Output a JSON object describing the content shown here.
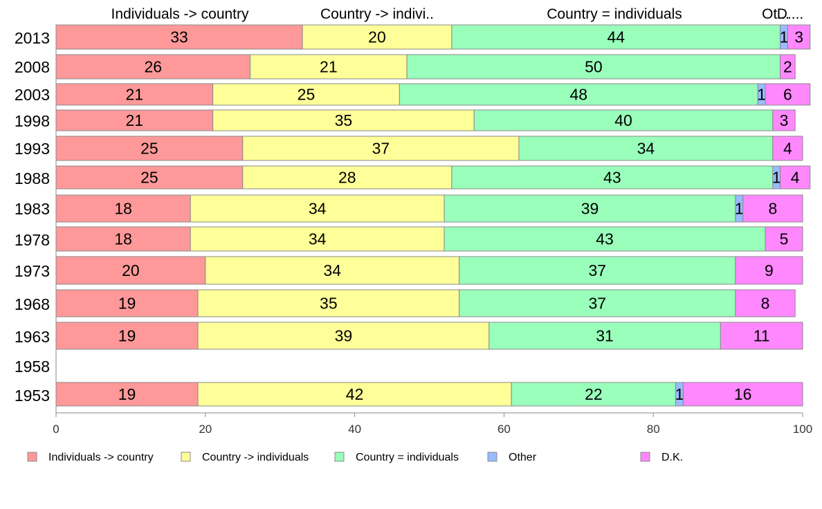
{
  "chart_data": {
    "type": "bar",
    "orientation": "horizontal-stacked",
    "categories": [
      "2013",
      "2008",
      "2003",
      "1998",
      "1993",
      "1988",
      "1983",
      "1978",
      "1973",
      "1968",
      "1963",
      "1958",
      "1953"
    ],
    "series": [
      {
        "name": "Individuals -> country",
        "color": "#ff9999",
        "values": [
          33,
          26,
          21,
          21,
          25,
          25,
          18,
          18,
          20,
          19,
          19,
          null,
          19
        ]
      },
      {
        "name": "Country -> individuals",
        "color": "#ffff99",
        "values": [
          20,
          21,
          25,
          35,
          37,
          28,
          34,
          34,
          34,
          35,
          39,
          null,
          42
        ]
      },
      {
        "name": "Country = individuals",
        "color": "#99ffbb",
        "values": [
          44,
          50,
          48,
          40,
          34,
          43,
          39,
          43,
          37,
          37,
          31,
          null,
          22
        ]
      },
      {
        "name": "Other",
        "color": "#99bbff",
        "values": [
          1,
          0,
          1,
          0,
          0,
          1,
          1,
          0,
          0,
          0,
          0,
          null,
          1
        ]
      },
      {
        "name": "D.K.",
        "color": "#ff88ff",
        "values": [
          3,
          2,
          6,
          3,
          4,
          4,
          8,
          5,
          9,
          8,
          11,
          null,
          16
        ]
      }
    ],
    "header_labels": [
      "Individuals -> country",
      "Country -> indivi..",
      "Country = individuals",
      "Ot...",
      "D...."
    ],
    "x_ticks": [
      "0",
      "20",
      "40",
      "60",
      "80",
      "100"
    ],
    "xlim": [
      0,
      100
    ],
    "grid": false,
    "legend_position": "bottom"
  }
}
